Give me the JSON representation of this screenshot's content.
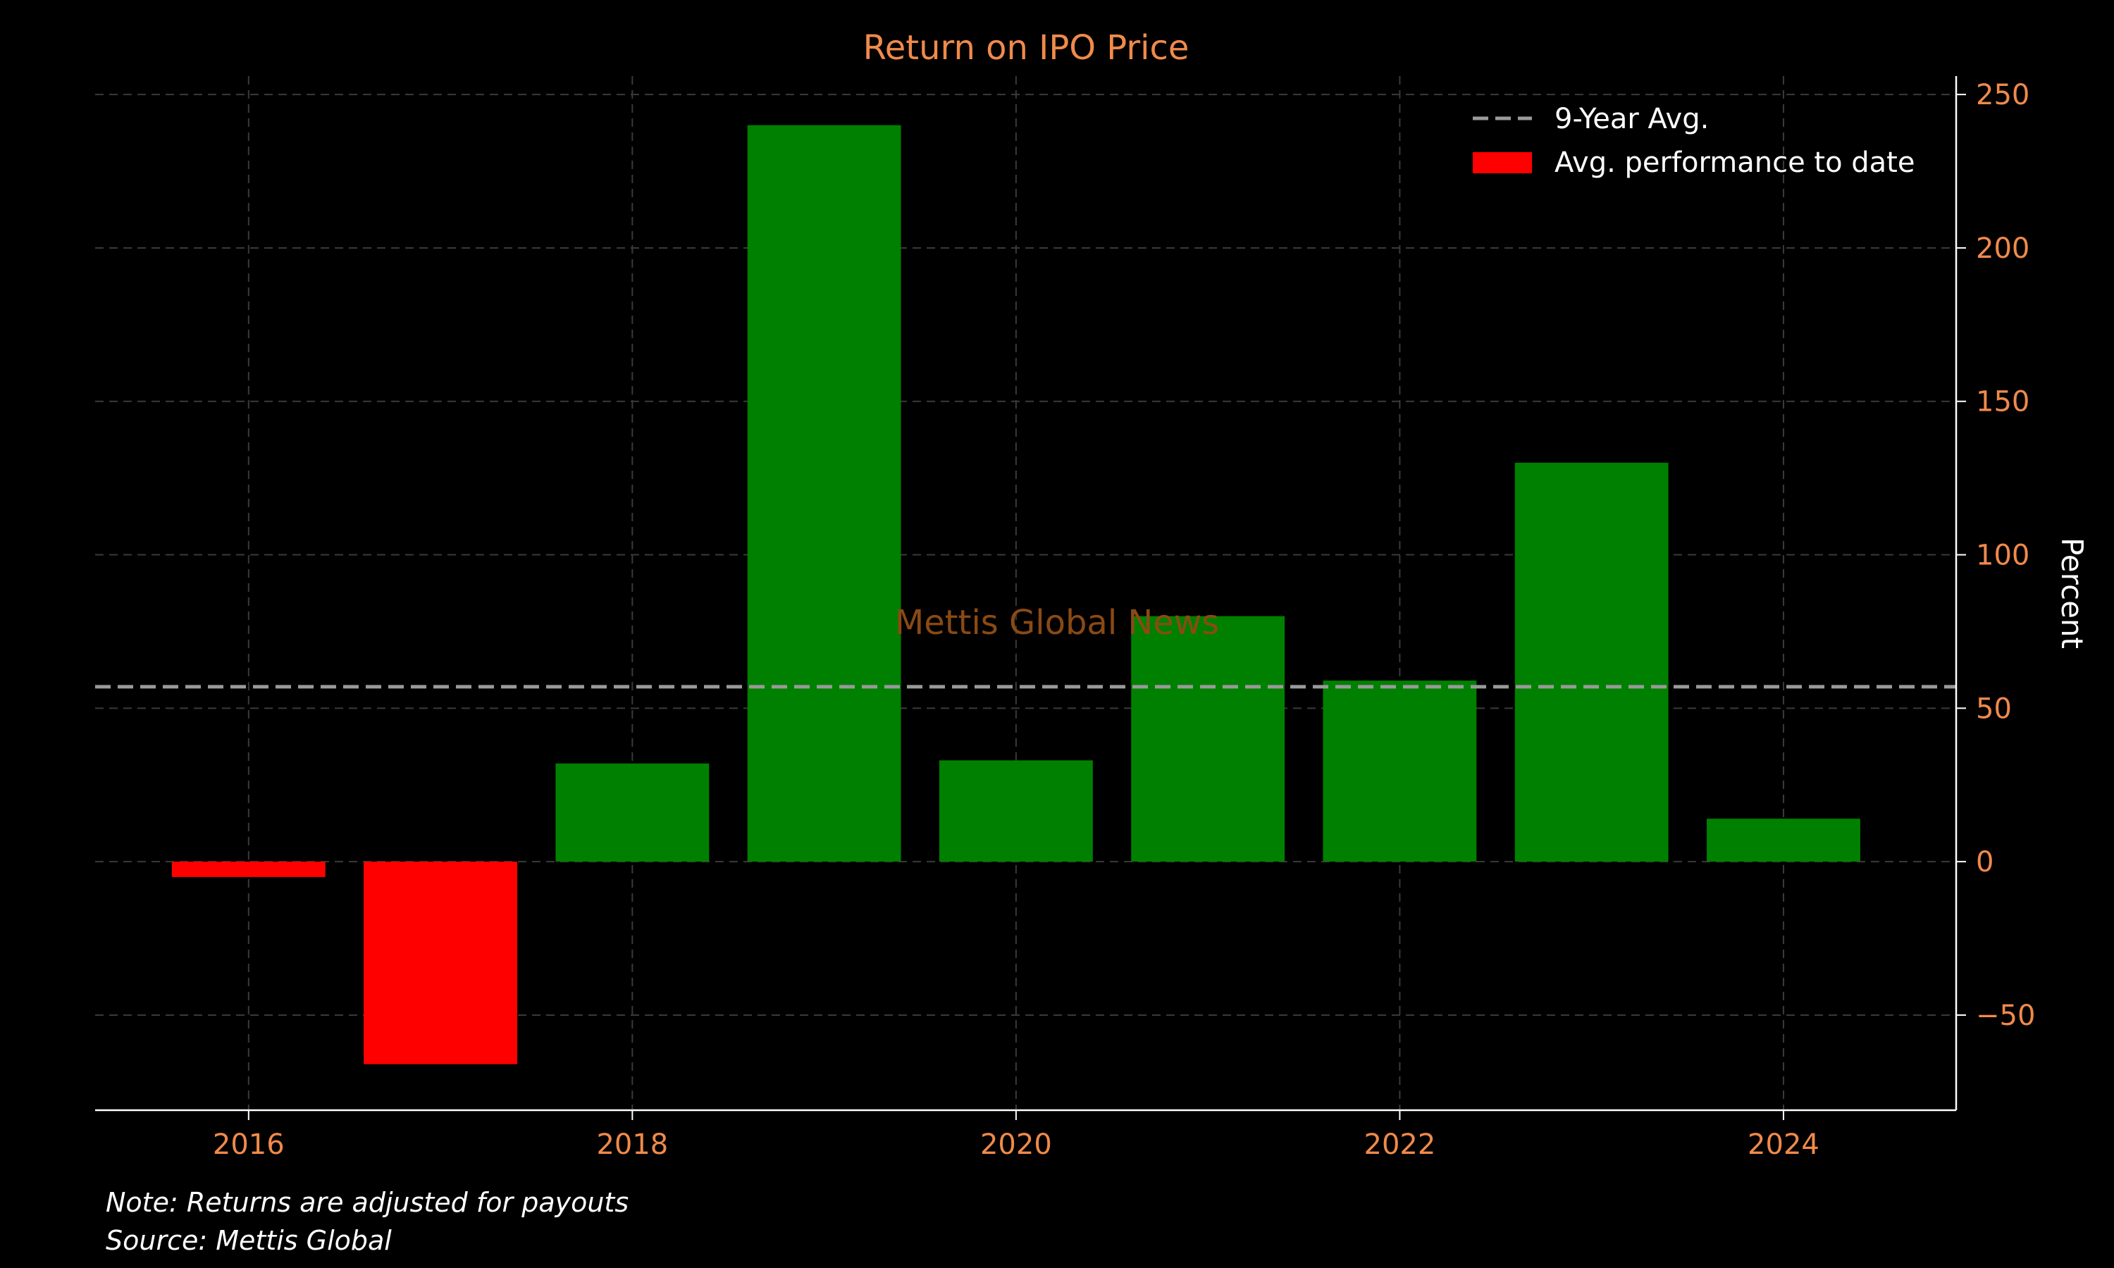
{
  "chart_data": {
    "type": "bar",
    "title": "Return on IPO Price",
    "ylabel": "Percent",
    "xlabel": "",
    "x": [
      2016,
      2017,
      2018,
      2019,
      2020,
      2021,
      2022,
      2023,
      2024
    ],
    "values": [
      -5,
      -66,
      32,
      240,
      33,
      80,
      59,
      130,
      14
    ],
    "average": 57,
    "ylim": [
      -81,
      256
    ],
    "xlim": [
      2015.2,
      2024.9
    ],
    "x_ticks": [
      "2016",
      "2018",
      "2020",
      "2022",
      "2024"
    ],
    "y_ticks": [
      "−50",
      "0",
      "50",
      "100",
      "150",
      "200",
      "250"
    ],
    "y_axis_side": "right",
    "grid": true,
    "legend": {
      "placement": "top-right",
      "entries": [
        {
          "label": "9-Year Avg.",
          "style": "dashed-line",
          "color": "#9a9a9a"
        },
        {
          "label": "Avg. performance to date",
          "style": "patch",
          "color": "#ff0000"
        }
      ]
    },
    "colors": {
      "positive": "#008000",
      "negative": "#ff0000",
      "accent": "#f08a4b",
      "grid": "#3a3a3a",
      "average_line": "#9a9a9a",
      "background": "#000000"
    }
  },
  "watermark": "Mettis Global News",
  "notes": {
    "note": "Note: Returns are adjusted for payouts",
    "source": "Source: Mettis Global"
  }
}
